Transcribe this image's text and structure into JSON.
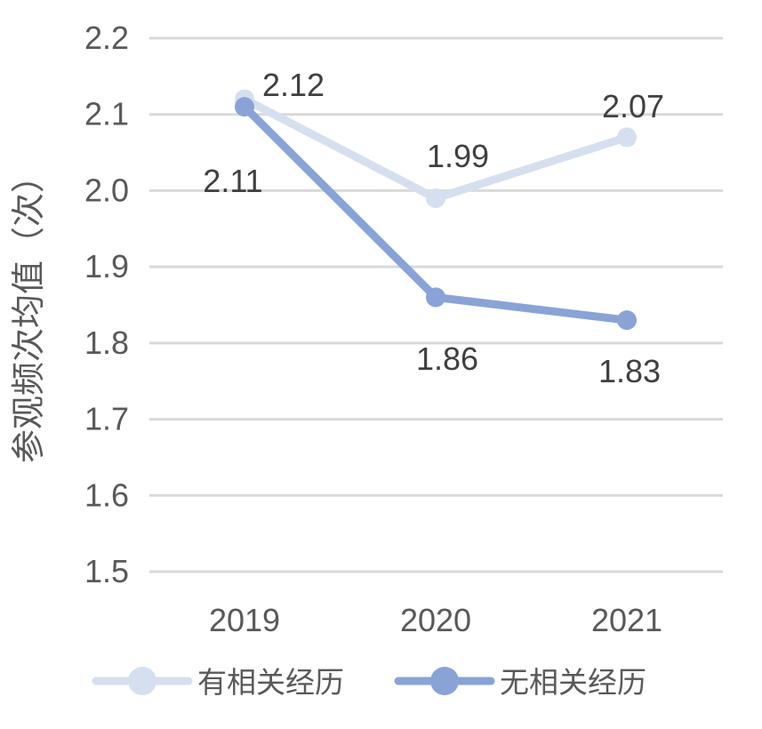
{
  "chart_data": {
    "type": "line",
    "title": "",
    "xlabel": "",
    "ylabel": "参观频次均值（次）",
    "categories": [
      "2019",
      "2020",
      "2021"
    ],
    "series": [
      {
        "name": "有相关经历",
        "color": "#D5DFEF",
        "values": [
          2.12,
          1.99,
          2.07
        ],
        "data_labels": [
          "2.12",
          "1.99",
          "2.07"
        ]
      },
      {
        "name": "无相关经历",
        "color": "#8AA3D6",
        "values": [
          2.11,
          1.86,
          1.83
        ],
        "data_labels": [
          "2.11",
          "1.86",
          "1.83"
        ]
      }
    ],
    "ylim": [
      1.5,
      2.2
    ],
    "ytick_step": 0.1,
    "ytick_labels": [
      "2.2",
      "2.1",
      "2.0",
      "1.9",
      "1.8",
      "1.7",
      "1.6",
      "1.5"
    ],
    "grid": true,
    "legend_position": "bottom"
  },
  "palette": {
    "gridline": "#D9D9D9",
    "axis_text": "#595959",
    "data_label_text": "#404040",
    "background": "#FFFFFF"
  }
}
